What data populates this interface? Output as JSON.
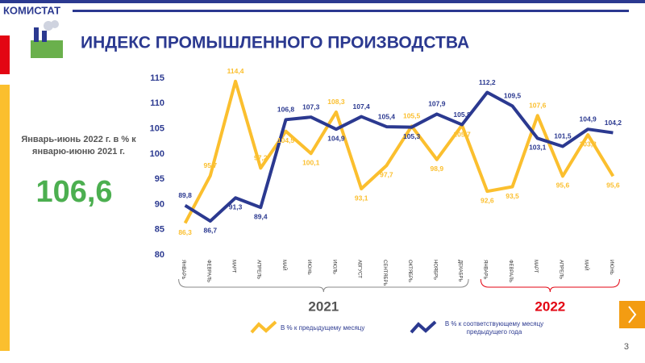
{
  "header": {
    "brand": "КОМИСТАТ",
    "page_number": "3"
  },
  "summary": {
    "text": "Январь-июнь 2022 г. в % к январю-июню 2021 г.",
    "value": "106,6"
  },
  "chart_data": {
    "type": "line",
    "title": "ИНДЕКС ПРОМЫШЛЕННОГО ПРОИЗВОДСТВА",
    "categories": [
      "ЯНВАРЬ",
      "ФЕВРАЛЬ",
      "МАРТ",
      "АПРЕЛЬ",
      "МАЙ",
      "ИЮНЬ",
      "ИЮЛЬ",
      "АВГУСТ",
      "СЕНТЯБРЬ",
      "ОКТЯБРЬ",
      "НОЯБРЬ",
      "ДЕКАБРЬ",
      "ЯНВАРЬ",
      "ФЕВРАЛЬ",
      "МАРТ",
      "АПРЕЛЬ",
      "МАЙ",
      "ИЮНЬ"
    ],
    "year_groups": [
      "2021",
      "2022"
    ],
    "series": [
      {
        "name": "В % к предыдущему месяцу",
        "color": "#fbbf2e",
        "values": [
          86.3,
          95.7,
          114.4,
          97.2,
          104.5,
          100.1,
          108.3,
          93.1,
          97.7,
          105.5,
          98.9,
          105.7,
          92.6,
          93.5,
          107.6,
          95.6,
          103.8,
          95.6
        ],
        "value_labels": [
          "86,3",
          "95,7",
          "114,4",
          "97,2",
          "104,5",
          "100,1",
          "108,3",
          "93,1",
          "97,7",
          "105,5",
          "98,9",
          "105,7",
          "92,6",
          "93,5",
          "107,6",
          "95,6",
          "103,8",
          "95,6"
        ]
      },
      {
        "name": "В % к соответствующему месяцу предыдущего года",
        "color": "#2b3990",
        "values": [
          89.8,
          86.7,
          91.3,
          89.4,
          106.8,
          107.3,
          104.9,
          107.4,
          105.4,
          105.3,
          107.9,
          105.8,
          112.2,
          109.5,
          103.1,
          101.5,
          104.9,
          104.2
        ],
        "value_labels": [
          "89,8",
          "86,7",
          "91,3",
          "89,4",
          "106,8",
          "107,3",
          "104,9",
          "107,4",
          "105,4",
          "105,3",
          "107,9",
          "105,8",
          "112,2",
          "109,5",
          "103,1",
          "101,5",
          "104,9",
          "104,2"
        ]
      }
    ],
    "ylim": [
      80,
      115
    ],
    "yticks": [
      80,
      85,
      90,
      95,
      100,
      105,
      110,
      115
    ],
    "grid": false
  }
}
